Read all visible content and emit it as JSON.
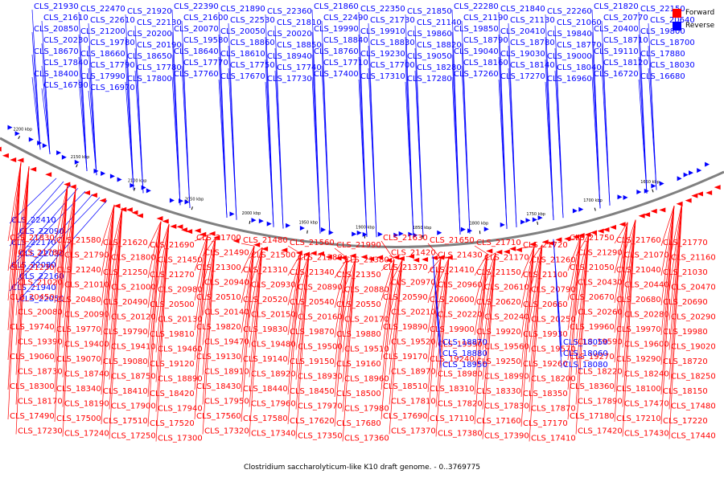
{
  "caption": "Clostridium saccharolyticum-like K10 draft genome. - 0..3769775",
  "legend": [
    {
      "label": "Forward",
      "color": "#ff0000"
    },
    {
      "label": "Reverse",
      "color": "#0000ff"
    }
  ],
  "colors": {
    "forward": "#ff0000",
    "reverse": "#0000ff",
    "backbone": "#808080"
  },
  "scale_ticks": [
    "2200 kbp",
    "2150 kbp",
    "2100 kbp",
    "2050 kbp",
    "2000 kbp",
    "1950 kbp",
    "1900 kbp",
    "1850 kbp",
    "1800 kbp",
    "1750 kbp",
    "1700 kbp",
    "1650 kbp"
  ],
  "reverse_labels": [
    "CLS_21930",
    "CLS_22470",
    "CLS_21920",
    "CLS_22390",
    "CLS_21890",
    "CLS_22360",
    "CLS_21860",
    "CLS_22350",
    "CLS_21850",
    "CLS_22280",
    "CLS_21840",
    "CLS_22260",
    "CLS_21820",
    "CLS_22150",
    "CLS_21610",
    "CLS_22610",
    "CLS_22130",
    "CLS_21600",
    "CLS_22530",
    "CLS_21810",
    "CLS_22490",
    "CLS_21730",
    "CLS_21140",
    "CLS_21190",
    "CLS_21130",
    "CLS_21060",
    "CLS_20770",
    "CLS_20640",
    "CLS_20850",
    "CLS_21200",
    "CLS_20200",
    "CLS_20070",
    "CLS_20050",
    "CLS_20020",
    "CLS_19990",
    "CLS_19910",
    "CLS_19860",
    "CLS_19850",
    "CLS_20410",
    "CLS_19840",
    "CLS_20400",
    "CLS_19800",
    "CLS_20230",
    "CLS_19780",
    "CLS_20190",
    "CLS_19580",
    "CLS_18860",
    "CLS_18850",
    "CLS_18840",
    "CLS_18830",
    "CLS_18820",
    "CLS_18790",
    "CLS_18780",
    "CLS_18770",
    "CLS_18710",
    "CLS_18700",
    "CLS_18670",
    "CLS_18660",
    "CLS_18650",
    "CLS_18640",
    "CLS_18610",
    "CLS_18940",
    "CLS_18760",
    "CLS_19230",
    "CLS_19050",
    "CLS_19040",
    "CLS_19030",
    "CLS_19000",
    "CLS_19110",
    "CLS_17880",
    "CLS_17840",
    "CLS_17790",
    "CLS_17780",
    "CLS_17770",
    "CLS_17750",
    "CLS_17740",
    "CLS_17710",
    "CLS_17700",
    "CLS_18280",
    "CLS_18160",
    "CLS_18140",
    "CLS_18040",
    "CLS_18120",
    "CLS_18030",
    "CLS_18400",
    "CLS_17990",
    "CLS_17800",
    "CLS_17760",
    "CLS_17670",
    "CLS_17730",
    "CLS_17400",
    "CLS_17310",
    "CLS_17280",
    "CLS_17260",
    "CLS_17270",
    "CLS_16960",
    "CLS_16720",
    "CLS_16680",
    "CLS_16790",
    "CLS_16970",
    "CLS_22410",
    "CLS_22090",
    "CLS_22170",
    "CLS_22030",
    "CLS_22080",
    "CLS_22160",
    "CLS_21940",
    "CLS_22050"
  ],
  "forward_labels": [
    "CLS_21830",
    "CLS_21580",
    "CLS_21620",
    "CLS_21690",
    "CLS_21700",
    "CLS_21480",
    "CLS_21560",
    "CLS_21990",
    "CLS_21630",
    "CLS_21650",
    "CLS_21710",
    "CLS_21720",
    "CLS_21750",
    "CLS_21760",
    "CLS_21770",
    "CLS_21780",
    "CLS_21790",
    "CLS_21800",
    "CLS_21450",
    "CLS_21490",
    "CLS_21500",
    "CLS_21280",
    "CLS_21380",
    "CLS_21420",
    "CLS_21430",
    "CLS_21170",
    "CLS_21260",
    "CLS_21290",
    "CLS_21070",
    "CLS_21160",
    "CLS_21230",
    "CLS_21240",
    "CLS_21250",
    "CLS_21270",
    "CLS_21300",
    "CLS_21310",
    "CLS_21340",
    "CLS_21350",
    "CLS_21370",
    "CLS_21410",
    "CLS_21150",
    "CLS_21100",
    "CLS_21050",
    "CLS_21040",
    "CLS_21030",
    "CLS_21020",
    "CLS_21010",
    "CLS_21000",
    "CLS_20980",
    "CLS_20940",
    "CLS_20930",
    "CLS_20890",
    "CLS_20880",
    "CLS_20970",
    "CLS_20960",
    "CLS_20610",
    "CLS_20790",
    "CLS_20430",
    "CLS_20440",
    "CLS_20470",
    "CLS_20450",
    "CLS_20480",
    "CLS_20490",
    "CLS_20500",
    "CLS_20510",
    "CLS_20520",
    "CLS_20540",
    "CLS_20550",
    "CLS_20590",
    "CLS_20600",
    "CLS_20620",
    "CLS_20660",
    "CLS_20670",
    "CLS_20680",
    "CLS_20690",
    "CLS_20080",
    "CLS_20090",
    "CLS_20120",
    "CLS_20130",
    "CLS_20140",
    "CLS_20150",
    "CLS_20160",
    "CLS_20170",
    "CLS_20210",
    "CLS_20220",
    "CLS_20240",
    "CLS_20250",
    "CLS_20260",
    "CLS_20280",
    "CLS_20290",
    "CLS_19740",
    "CLS_19770",
    "CLS_19790",
    "CLS_19810",
    "CLS_19820",
    "CLS_19830",
    "CLS_19870",
    "CLS_19880",
    "CLS_19890",
    "CLS_19900",
    "CLS_19920",
    "CLS_19930",
    "CLS_19960",
    "CLS_19970",
    "CLS_19980",
    "CLS_19390",
    "CLS_19400",
    "CLS_19410",
    "CLS_19460",
    "CLS_19470",
    "CLS_19480",
    "CLS_19500",
    "CLS_19510",
    "CLS_19520",
    "CLS_19550",
    "CLS_19560",
    "CLS_19570",
    "CLS_19590",
    "CLS_19600",
    "CLS_19020",
    "CLS_19060",
    "CLS_19070",
    "CLS_19080",
    "CLS_19120",
    "CLS_19130",
    "CLS_19140",
    "CLS_19150",
    "CLS_19160",
    "CLS_19170",
    "CLS_19240",
    "CLS_19250",
    "CLS_19260",
    "CLS_19270",
    "CLS_19290",
    "CLS_18720",
    "CLS_18730",
    "CLS_18740",
    "CLS_18750",
    "CLS_18890",
    "CLS_18910",
    "CLS_18920",
    "CLS_18930",
    "CLS_18960",
    "CLS_18970",
    "CLS_18980",
    "CLS_18990",
    "CLS_18200",
    "CLS_18220",
    "CLS_18240",
    "CLS_18250",
    "CLS_18300",
    "CLS_18340",
    "CLS_18410",
    "CLS_18420",
    "CLS_18430",
    "CLS_18440",
    "CLS_18450",
    "CLS_18500",
    "CLS_18510",
    "CLS_18310",
    "CLS_18330",
    "CLS_18350",
    "CLS_18360",
    "CLS_18100",
    "CLS_18150",
    "CLS_18170",
    "CLS_18190",
    "CLS_17900",
    "CLS_17940",
    "CLS_17950",
    "CLS_17960",
    "CLS_17970",
    "CLS_17980",
    "CLS_17810",
    "CLS_17820",
    "CLS_17830",
    "CLS_17870",
    "CLS_17890",
    "CLS_17470",
    "CLS_17480",
    "CLS_17490",
    "CLS_17500",
    "CLS_17510",
    "CLS_17520",
    "CLS_17560",
    "CLS_17580",
    "CLS_17620",
    "CLS_17680",
    "CLS_17690",
    "CLS_17110",
    "CLS_17160",
    "CLS_17170",
    "CLS_17180",
    "CLS_17210",
    "CLS_17220",
    "CLS_17230",
    "CLS_17240",
    "CLS_17250",
    "CLS_17300",
    "CLS_17320",
    "CLS_17340",
    "CLS_17350",
    "CLS_17360",
    "CLS_17370",
    "CLS_17380",
    "CLS_17390",
    "CLS_17410",
    "CLS_17420",
    "CLS_17430",
    "CLS_17440"
  ],
  "middle_reverse_labels": [
    "CLS_18870",
    "CLS_18880",
    "CLS_18950",
    "CLS_18050",
    "CLS_18060",
    "CLS_18080"
  ]
}
